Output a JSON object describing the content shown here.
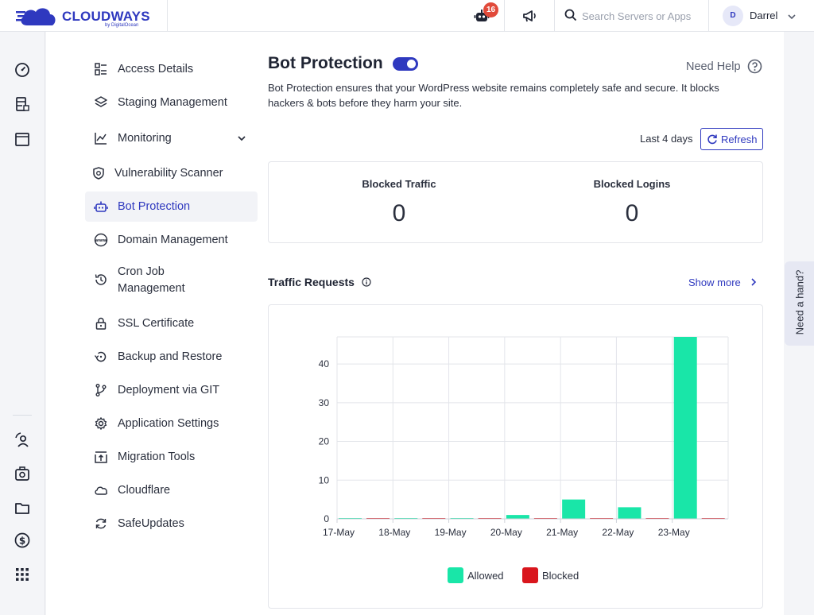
{
  "header": {
    "logo_text": "CLOUDWAYS",
    "logo_sub": "by DigitalOcean",
    "bot_badge_count": "16",
    "search_placeholder": "Search Servers or Apps",
    "user_initial": "D",
    "user_name": "Darrel"
  },
  "menu": {
    "items": [
      {
        "label": "Access Details",
        "icon": "access-details-icon"
      },
      {
        "label": "Staging Management",
        "icon": "layers-icon"
      },
      {
        "label": "Monitoring",
        "icon": "chart-line-icon"
      },
      {
        "label": "Vulnerability Scanner",
        "icon": "shield-scan-icon"
      },
      {
        "label": "Bot Protection",
        "icon": "robot-icon"
      },
      {
        "label": "Domain Management",
        "icon": "www-globe-icon"
      },
      {
        "label": "Cron Job Management",
        "icon": "history-clock-icon"
      },
      {
        "label": "SSL Certificate",
        "icon": "lock-icon"
      },
      {
        "label": "Backup and Restore",
        "icon": "backup-icon"
      },
      {
        "label": "Deployment via GIT",
        "icon": "git-branch-icon"
      },
      {
        "label": "Application Settings",
        "icon": "gear-icon"
      },
      {
        "label": "Migration Tools",
        "icon": "upload-box-icon"
      },
      {
        "label": "Cloudflare",
        "icon": "cloud-icon"
      },
      {
        "label": "SafeUpdates",
        "icon": "refresh-cycle-icon"
      }
    ],
    "active_index": 4
  },
  "main": {
    "title": "Bot Protection",
    "toggle_on": true,
    "need_help": "Need Help",
    "description": "Bot Protection ensures that your WordPress website remains completely safe and secure. It blocks hackers & bots before they harm your site.",
    "range_label": "Last 4 days",
    "refresh_label": "Refresh",
    "stats": {
      "blocked_traffic_label": "Blocked Traffic",
      "blocked_traffic_value": "0",
      "blocked_logins_label": "Blocked Logins",
      "blocked_logins_value": "0"
    },
    "traffic_title": "Traffic Requests",
    "show_more": "Show more"
  },
  "side_tab": {
    "label": "Need a hand?"
  },
  "colors": {
    "brand": "#2f39bf",
    "allowed": "#19e6a8",
    "blocked": "#d9161d"
  },
  "chart_data": {
    "type": "bar",
    "categories": [
      "17-May",
      "18-May",
      "19-May",
      "20-May",
      "21-May",
      "22-May",
      "23-May"
    ],
    "series": [
      {
        "name": "Allowed",
        "values": [
          0,
          0,
          0,
          1,
          5,
          3,
          47
        ]
      },
      {
        "name": "Blocked",
        "values": [
          0,
          0,
          0,
          0,
          0,
          0,
          0
        ]
      }
    ],
    "yticks": [
      0,
      10,
      20,
      30,
      40
    ],
    "ylim": [
      0,
      47
    ],
    "grid": true,
    "legend": "bottom"
  }
}
